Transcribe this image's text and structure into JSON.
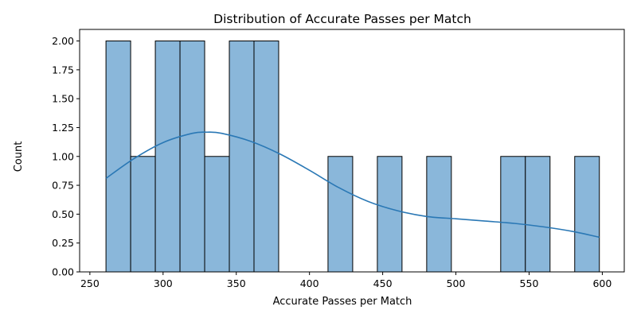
{
  "chart_data": {
    "type": "bar",
    "title": "Distribution of Accurate Passes per Match",
    "xlabel": "Accurate Passes per Match",
    "ylabel": "Count",
    "xlim": [
      243,
      615
    ],
    "ylim": [
      0,
      2.1
    ],
    "xticks": [
      250,
      300,
      350,
      400,
      450,
      500,
      550,
      600
    ],
    "yticks": [
      0.0,
      0.25,
      0.5,
      0.75,
      1.0,
      1.25,
      1.5,
      1.75,
      2.0
    ],
    "ytick_labels": [
      "0.00",
      "0.25",
      "0.50",
      "0.75",
      "1.00",
      "1.25",
      "1.50",
      "1.75",
      "2.00"
    ],
    "bin_start": 261,
    "bin_width": 16.85,
    "counts": [
      2,
      1,
      2,
      2,
      1,
      2,
      2,
      0,
      0,
      1,
      0,
      1,
      0,
      1,
      0,
      0,
      1,
      1,
      0,
      1
    ],
    "bar_fill": "#8ab7da",
    "bar_edge": "#000000",
    "kde_color": "#2a78b5",
    "kde": {
      "x": [
        261,
        280,
        300,
        320,
        330,
        340,
        360,
        380,
        400,
        420,
        440,
        460,
        480,
        500,
        520,
        540,
        560,
        580,
        598
      ],
      "y": [
        0.81,
        0.98,
        1.12,
        1.2,
        1.21,
        1.2,
        1.13,
        1.02,
        0.88,
        0.73,
        0.61,
        0.53,
        0.48,
        0.46,
        0.44,
        0.42,
        0.39,
        0.35,
        0.3
      ]
    }
  }
}
